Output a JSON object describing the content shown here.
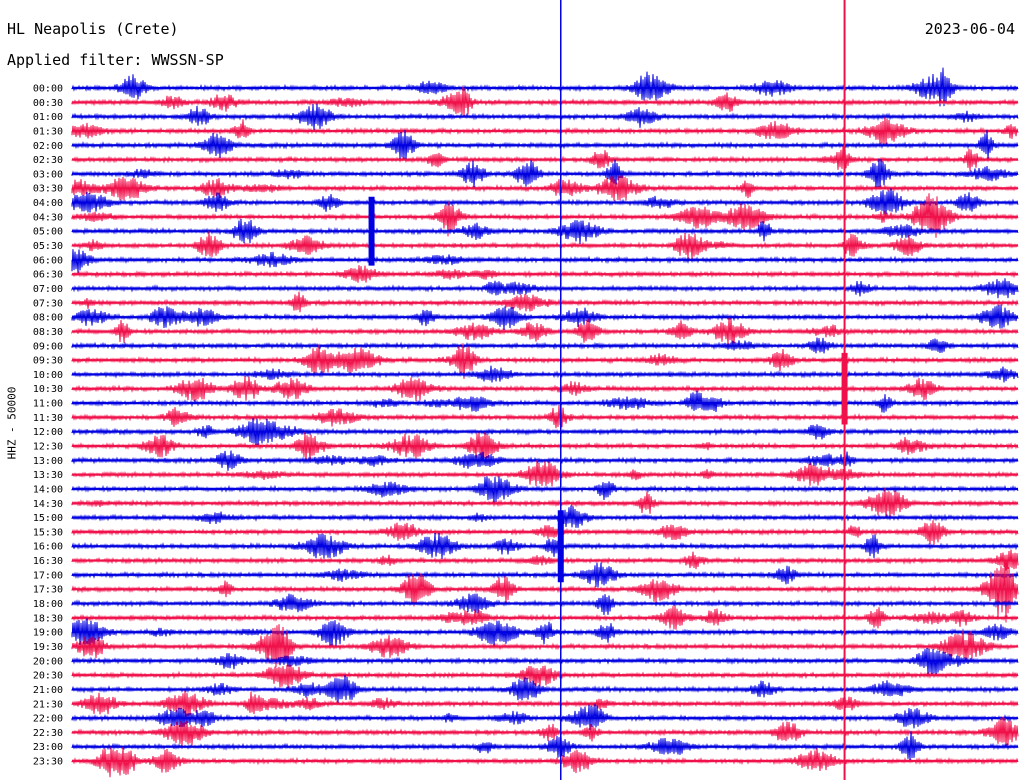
{
  "header": {
    "station": "HL Neapolis (Crete)",
    "date": "2023-06-04",
    "filter": "Applied filter: WWSSN-SP"
  },
  "channel_label": "HHZ - 50000",
  "chart_data": {
    "type": "line",
    "title": "HL Neapolis (Crete)",
    "subtitle": "Applied filter: WWSSN-SP",
    "ylabel": "HHZ - 50000",
    "xlabel": "",
    "tick_labels": [
      "00:00",
      "00:30",
      "01:00",
      "01:30",
      "02:00",
      "02:30",
      "03:00",
      "03:30",
      "04:00",
      "04:30",
      "05:00",
      "05:30",
      "06:00",
      "06:30",
      "07:00",
      "07:30",
      "08:00",
      "08:30",
      "09:00",
      "09:30",
      "10:00",
      "10:30",
      "11:00",
      "11:30",
      "12:00",
      "12:30",
      "13:00",
      "13:30",
      "14:00",
      "14:30",
      "15:00",
      "15:30",
      "16:00",
      "16:30",
      "17:00",
      "17:30",
      "18:00",
      "18:30",
      "19:00",
      "19:30",
      "20:00",
      "20:30",
      "21:00",
      "21:30",
      "22:00",
      "22:30",
      "23:00",
      "23:30"
    ],
    "trace_minutes": 30,
    "series_colors": [
      "#0000e0",
      "#f0104a"
    ],
    "grid": false,
    "notable_events": [
      {
        "time": "00:00",
        "minute": 15.5,
        "note": "tall spike crossing all traces"
      },
      {
        "time": "00:00",
        "minute": 24.5,
        "note": "tall spike crossing all traces"
      },
      {
        "time": "05:00",
        "minute": 9.5,
        "note": "large event"
      },
      {
        "time": "16:00",
        "minute": 15.5,
        "note": "large event"
      },
      {
        "time": "10:30",
        "minute": 24.5,
        "note": "large event"
      }
    ]
  }
}
